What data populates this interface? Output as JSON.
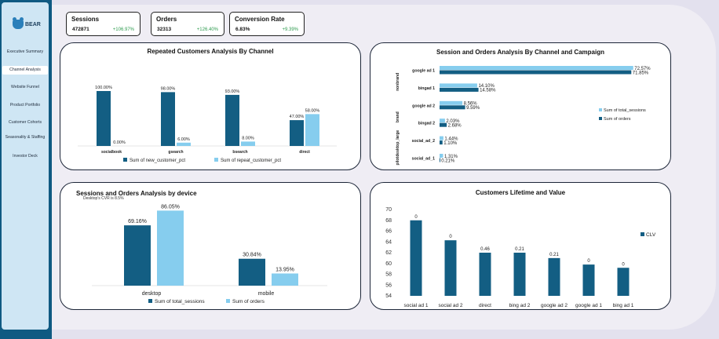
{
  "brand": {
    "name": "BEAR",
    "logo_icon": "bear-icon"
  },
  "nav": {
    "items": [
      {
        "label": "Executive Summary"
      },
      {
        "label": "Channel Analysis"
      },
      {
        "label": "Website Funnel"
      },
      {
        "label": "Product Portfolio"
      },
      {
        "label": "Customer Cohorts"
      },
      {
        "label": "Seasonality & Staffing"
      },
      {
        "label": "Investor Deck"
      }
    ],
    "active": "Channel Analysis"
  },
  "kpis": {
    "sessions": {
      "title": "Sessions",
      "value": "472871",
      "delta": "+106.97%"
    },
    "orders": {
      "title": "Orders",
      "value": "32313",
      "delta": "+126.40%"
    },
    "conversion": {
      "title": "Conversion Rate",
      "value": "6.83%",
      "delta": "+9.39%"
    }
  },
  "colors": {
    "dark_series": "#135e83",
    "light_series": "#86cdee",
    "positive": "#2e9b4f"
  },
  "chart_data": [
    {
      "type": "bar",
      "title": "Repeated Customers Analysis By Channel",
      "categories": [
        "socialbook",
        "gsearch",
        "bsearch",
        "direct"
      ],
      "series": [
        {
          "name": "Sum of new_customer_pct",
          "values": [
            100.0,
            98.0,
            93.0,
            47.0
          ],
          "labels": [
            "100.00%",
            "98.00%",
            "93.00%",
            "47.00%"
          ]
        },
        {
          "name": "Sum of repeat_customer_pct",
          "values": [
            0.0,
            6.0,
            8.0,
            58.0
          ],
          "labels": [
            "0.00%",
            "6.00%",
            "8.00%",
            "58.00%"
          ]
        }
      ],
      "ylim": [
        0,
        100
      ],
      "legend": "bottom"
    },
    {
      "type": "bar",
      "orientation": "horizontal",
      "title": "Session and Orders Analysis By Channel and Campaign",
      "groups": [
        {
          "label": "nonbrand",
          "rows": [
            "google ad 1",
            "bingad 1"
          ]
        },
        {
          "label": "brand",
          "rows": [
            "google ad 2",
            "bingad 2"
          ]
        },
        {
          "label": "desktop_large",
          "rows": [
            "social_ad_2"
          ]
        },
        {
          "label": "pilot",
          "rows": [
            "social_ad_1"
          ]
        }
      ],
      "categories": [
        "google ad 1",
        "bingad 1",
        "google ad 2",
        "bingad 2",
        "social_ad_2",
        "social_ad_1"
      ],
      "series": [
        {
          "name": "Sum of total_sessions",
          "values": [
            72.57,
            14.1,
            8.56,
            2.03,
            1.44,
            1.31
          ],
          "labels": [
            "72.57%",
            "14.10%",
            "8.56%",
            "2.03%",
            "1.44%",
            "1.31%"
          ]
        },
        {
          "name": "Sum of orders",
          "values": [
            71.85,
            14.58,
            9.59,
            2.68,
            1.1,
            0.21
          ],
          "labels": [
            "71.85%",
            "14.58%",
            "9.59%",
            "2.68%",
            "1.10%",
            "0.21%"
          ]
        }
      ],
      "xlim": [
        0,
        80
      ],
      "legend": "right"
    },
    {
      "type": "bar",
      "title": "Sessions and Orders Analysis by device",
      "subtitle": "Desktop's CVR is 8.5%",
      "categories": [
        "desktop",
        "mobile"
      ],
      "series": [
        {
          "name": "Sum of total_sessions",
          "values": [
            69.16,
            30.84
          ],
          "labels": [
            "69.16%",
            "30.84%"
          ]
        },
        {
          "name": "Sum of orders",
          "values": [
            86.05,
            13.95
          ],
          "labels": [
            "86.05%",
            "13.95%"
          ]
        }
      ],
      "ylim": [
        0,
        90
      ],
      "legend": "bottom"
    },
    {
      "type": "bar",
      "title": "Customers Lifetime and Value",
      "categories": [
        "social ad 1",
        "social ad 2",
        "direct",
        "bing ad 2",
        "google ad 2",
        "google ad 1",
        "bing ad 1"
      ],
      "series": [
        {
          "name": "CLV",
          "values": [
            68,
            64.3,
            62,
            62,
            61,
            59.8,
            59.2
          ],
          "labels": [
            "0",
            "0",
            "0.46",
            "0.21",
            "0.21",
            "0",
            "0"
          ]
        }
      ],
      "yticks": [
        "54",
        "56",
        "58",
        "60",
        "62",
        "64",
        "66",
        "68",
        "70"
      ],
      "ylim": [
        54,
        70
      ],
      "legend": "right"
    }
  ]
}
